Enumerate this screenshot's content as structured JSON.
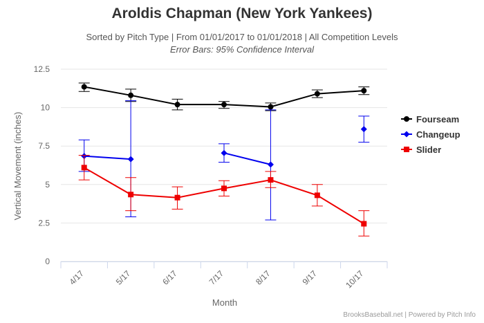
{
  "title": "Aroldis Chapman (New York Yankees)",
  "subtitle": "Sorted by Pitch Type | From 01/01/2017 to 01/01/2018 | All Competition Levels",
  "subtitle2": "Error Bars: 95% Confidence Interval",
  "credits": "BrooksBaseball.net | Powered by Pitch Info",
  "chart_data": {
    "type": "line",
    "xlabel": "Month",
    "ylabel": "Vertical Movement (inches)",
    "ylim": [
      0,
      12.5
    ],
    "yticks": [
      "0",
      "2.5",
      "5",
      "7.5",
      "10",
      "12.5"
    ],
    "categories": [
      "4/17",
      "5/17",
      "6/17",
      "7/17",
      "8/17",
      "9/17",
      "10/17"
    ],
    "grid": "horizontal",
    "legend_position": "right",
    "series": [
      {
        "name": "Fourseam",
        "color": "#000000",
        "marker": "circle",
        "values": [
          11.35,
          10.8,
          10.2,
          10.2,
          10.05,
          10.9,
          11.1
        ],
        "error_low": [
          11.05,
          10.4,
          9.85,
          9.95,
          9.8,
          10.65,
          10.85
        ],
        "error_high": [
          11.6,
          11.2,
          10.55,
          10.4,
          10.3,
          11.15,
          11.35
        ]
      },
      {
        "name": "Changeup",
        "color": "#0000ee",
        "marker": "diamond",
        "values": [
          6.85,
          6.65,
          null,
          7.05,
          6.3,
          null,
          8.6
        ],
        "error_low": [
          5.85,
          2.9,
          null,
          6.45,
          2.7,
          null,
          7.75
        ],
        "error_high": [
          7.9,
          10.45,
          null,
          7.65,
          9.85,
          null,
          9.45
        ]
      },
      {
        "name": "Slider",
        "color": "#ee0000",
        "marker": "square",
        "values": [
          6.1,
          4.35,
          4.15,
          4.75,
          5.3,
          4.3,
          2.45
        ],
        "error_low": [
          5.3,
          3.3,
          3.4,
          4.25,
          4.8,
          3.6,
          1.65
        ],
        "error_high": [
          6.9,
          5.45,
          4.85,
          5.25,
          5.85,
          5.0,
          3.3
        ]
      }
    ]
  }
}
